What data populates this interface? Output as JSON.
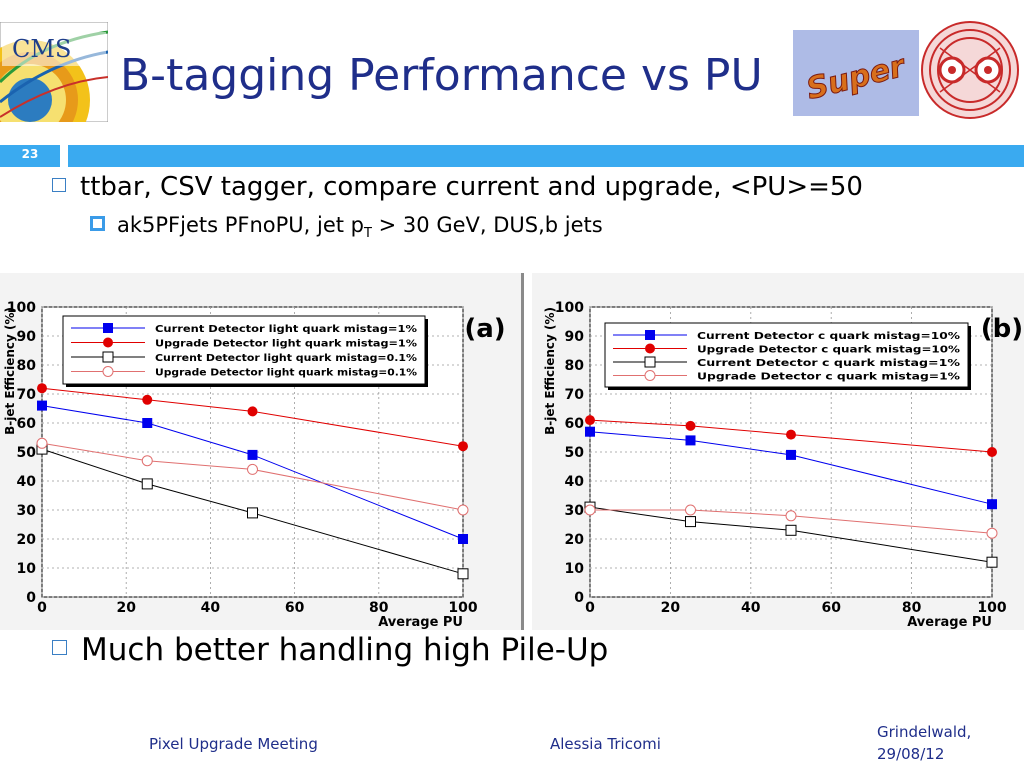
{
  "slide": {
    "title": "B-tagging Performance vs PU",
    "number": "23",
    "logo_left": "CMS",
    "logo_super": "Super"
  },
  "bullets": {
    "b1": "ttbar, CSV tagger, compare current and upgrade, <PU>=50",
    "b2_pre": "ak5PFjets PFnoPU, jet p",
    "b2_sub": "T",
    "b2_post": " > 30 GeV, DUS,b jets",
    "b3": "Much better handling high Pile-Up"
  },
  "footer": {
    "left": "Pixel Upgrade Meeting",
    "middle": "Alessia Tricomi",
    "right_line1": "Grindelwald,",
    "right_line2": "29/08/12"
  },
  "colors": {
    "title": "#1f2e8a",
    "accent_bar": "#3aaaf0",
    "current_blue": "#0000ee",
    "upgrade_red": "#e00000",
    "current_black": "#000000",
    "upgrade_pink": "#e07070"
  },
  "chart_data": [
    {
      "type": "line",
      "panel_label": "(a)",
      "xlabel": "Average PU",
      "ylabel": "B-jet Efficiency (%)",
      "xlim": [
        0,
        100
      ],
      "ylim": [
        0,
        100
      ],
      "x_ticks": [
        "0",
        "20",
        "40",
        "60",
        "80",
        "100"
      ],
      "y_ticks": [
        "0",
        "10",
        "20",
        "30",
        "40",
        "50",
        "60",
        "70",
        "80",
        "90",
        "100"
      ],
      "grid": true,
      "legend_position": "top",
      "x": [
        0,
        25,
        50,
        100
      ],
      "series": [
        {
          "name": "Current Detector light quark mistag=1%",
          "marker": "filled-square",
          "color": "#0000ee",
          "values": [
            66,
            60,
            49,
            20
          ]
        },
        {
          "name": "Upgrade Detector light quark mistag=1%",
          "marker": "filled-circle",
          "color": "#e00000",
          "values": [
            72,
            68,
            64,
            52
          ]
        },
        {
          "name": "Current Detector light quark mistag=0.1%",
          "marker": "open-square",
          "color": "#000000",
          "values": [
            51,
            39,
            29,
            8
          ]
        },
        {
          "name": "Upgrade Detector light quark mistag=0.1%",
          "marker": "open-circle",
          "color": "#e07070",
          "values": [
            53,
            47,
            44,
            30
          ]
        }
      ]
    },
    {
      "type": "line",
      "panel_label": "(b)",
      "xlabel": "Average PU",
      "ylabel": "B-jet Efficiency (%)",
      "xlim": [
        0,
        100
      ],
      "ylim": [
        0,
        100
      ],
      "x_ticks": [
        "0",
        "20",
        "40",
        "60",
        "80",
        "100"
      ],
      "y_ticks": [
        "0",
        "10",
        "20",
        "30",
        "40",
        "50",
        "60",
        "70",
        "80",
        "90",
        "100"
      ],
      "grid": true,
      "legend_position": "top",
      "x": [
        0,
        25,
        50,
        100
      ],
      "series": [
        {
          "name": "Current Detector c quark mistag=10%",
          "marker": "filled-square",
          "color": "#0000ee",
          "values": [
            57,
            54,
            49,
            32
          ]
        },
        {
          "name": "Upgrade Detector c quark mistag=10%",
          "marker": "filled-circle",
          "color": "#e00000",
          "values": [
            61,
            59,
            56,
            50
          ]
        },
        {
          "name": "Current Detector c quark mistag=1%",
          "marker": "open-square",
          "color": "#000000",
          "values": [
            31,
            26,
            23,
            12
          ]
        },
        {
          "name": "Upgrade Detector c quark mistag=1%",
          "marker": "open-circle",
          "color": "#e07070",
          "values": [
            30,
            30,
            28,
            22
          ]
        }
      ]
    }
  ]
}
